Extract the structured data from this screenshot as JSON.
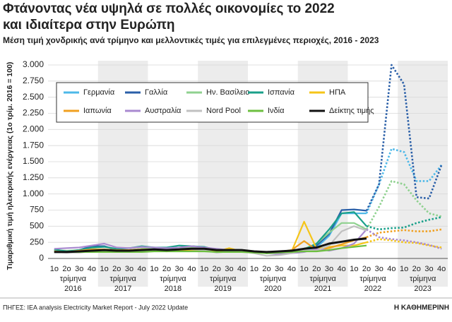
{
  "chart_data": {
    "type": "line",
    "title": [
      "Φτάνοντας νέα υψηλά σε πολλές οικονομίες το 2022",
      "και ιδιαίτερα στην Ευρώπη"
    ],
    "subtitle": "Μέση τιμή χονδρικής ανά τρίμηνο και μελλοντικές τιμές για επιλεγμένες περιοχές, 2016 - 2023",
    "y_label": "Τιμαριθμική τιμή ηλεκτρικής ενέργειας (1ο τρίμ. 2016 = 100)",
    "source": "ΠΗΓΕΣ: IEA analysis Electricity Market Report - July 2022 Update",
    "brand": "Η ΚΑΘΗΜΕΡΙΝΗ",
    "categories": [
      "1ο",
      "2ο",
      "3ο",
      "4ο",
      "1ο",
      "2ο",
      "3ο",
      "4ο",
      "1ο",
      "2ο",
      "3ο",
      "4ο",
      "1ο",
      "2ο",
      "3ο",
      "4ο",
      "1ο",
      "2ο",
      "3ο",
      "4ο",
      "1ο",
      "2ο",
      "3ο",
      "4ο",
      "1ο",
      "2ο",
      "3ο",
      "4ο",
      "1ο",
      "2ο",
      "3ο",
      "4ο"
    ],
    "x_group_unit": "τρίμηνα",
    "years": [
      "2016",
      "2017",
      "2018",
      "2019",
      "2020",
      "2021",
      "2022",
      "2023"
    ],
    "shade_alternate_years": true,
    "forecast_from": 26,
    "ylim": [
      0,
      3000
    ],
    "yticks": [
      0,
      250,
      500,
      750,
      {
        "value": 1000,
        "label": "1.000"
      },
      {
        "value": 1250,
        "label": "1.250"
      },
      {
        "value": 1500,
        "label": "1.500"
      },
      {
        "value": 1750,
        "label": "1.750"
      },
      {
        "value": 2000,
        "label": "2.000"
      },
      {
        "value": 2250,
        "label": "2.250"
      },
      {
        "value": 2500,
        "label": "2.500"
      },
      {
        "value": 2750,
        "label": "2.750"
      },
      {
        "value": 3000,
        "label": "3.000"
      }
    ],
    "grid": true,
    "legend": "upper left",
    "series": [
      {
        "name": "Γερμανία",
        "color": "#4db8e8",
        "values": [
          115,
          110,
          120,
          130,
          140,
          120,
          125,
          135,
          130,
          130,
          140,
          150,
          150,
          140,
          130,
          125,
          110,
          90,
          95,
          110,
          130,
          170,
          350,
          700,
          700,
          700,
          1150,
          1700,
          1650,
          1200,
          1200,
          1450
        ]
      },
      {
        "name": "Γαλλία",
        "color": "#2a5fa8",
        "values": [
          120,
          110,
          130,
          190,
          190,
          130,
          130,
          150,
          150,
          150,
          160,
          190,
          170,
          130,
          120,
          130,
          110,
          80,
          80,
          130,
          140,
          200,
          380,
          750,
          760,
          740,
          1150,
          3000,
          2700,
          950,
          930,
          1450
        ]
      },
      {
        "name": "Ην. Βασίλειο",
        "color": "#8fd18f",
        "values": [
          130,
          120,
          130,
          150,
          140,
          130,
          130,
          150,
          170,
          160,
          170,
          170,
          150,
          130,
          130,
          130,
          100,
          80,
          80,
          110,
          150,
          230,
          400,
          550,
          550,
          450,
          800,
          1200,
          1150,
          900,
          700,
          650
        ]
      },
      {
        "name": "Ισπανία",
        "color": "#1aa08a",
        "values": [
          140,
          110,
          130,
          170,
          180,
          150,
          160,
          190,
          170,
          170,
          200,
          190,
          180,
          130,
          140,
          130,
          110,
          80,
          100,
          130,
          140,
          230,
          450,
          700,
          720,
          500,
          450,
          470,
          480,
          550,
          600,
          640
        ]
      },
      {
        "name": "ΗΠΑ",
        "color": "#f5c518",
        "values": [
          100,
          100,
          110,
          110,
          110,
          110,
          120,
          120,
          120,
          110,
          130,
          120,
          120,
          110,
          160,
          110,
          100,
          90,
          110,
          110,
          570,
          150,
          180,
          200,
          200,
          250,
          300,
          280,
          250,
          240,
          200,
          170
        ]
      },
      {
        "name": "Ιαπωνία",
        "color": "#f0a020",
        "values": [
          110,
          100,
          120,
          140,
          140,
          130,
          130,
          140,
          140,
          130,
          140,
          140,
          130,
          120,
          120,
          120,
          110,
          90,
          100,
          130,
          270,
          130,
          160,
          220,
          280,
          330,
          400,
          420,
          440,
          420,
          420,
          450
        ]
      },
      {
        "name": "Αυστραλία",
        "color": "#a98ad0",
        "values": [
          150,
          160,
          170,
          200,
          230,
          170,
          160,
          180,
          170,
          160,
          170,
          190,
          170,
          150,
          130,
          120,
          110,
          80,
          70,
          80,
          100,
          150,
          120,
          160,
          230,
          450,
          330,
          300,
          280,
          250,
          210,
          150
        ]
      },
      {
        "name": "Nord Pool",
        "color": "#c0c0c0",
        "values": [
          100,
          90,
          90,
          110,
          120,
          110,
          100,
          120,
          130,
          120,
          150,
          140,
          130,
          90,
          110,
          110,
          80,
          40,
          50,
          80,
          130,
          120,
          200,
          420,
          500,
          430,
          null,
          null,
          null,
          null,
          null,
          null
        ]
      },
      {
        "name": "Ινδία",
        "color": "#6dbf40",
        "values": [
          100,
          100,
          100,
          100,
          100,
          100,
          100,
          100,
          110,
          110,
          110,
          110,
          110,
          100,
          100,
          100,
          90,
          80,
          90,
          100,
          110,
          110,
          130,
          160,
          180,
          200,
          null,
          null,
          null,
          null,
          null,
          null
        ]
      },
      {
        "name": "Δείκτης τιμής",
        "color": "#111111",
        "values": [
          100,
          100,
          110,
          120,
          130,
          120,
          120,
          130,
          140,
          130,
          140,
          150,
          150,
          130,
          130,
          130,
          110,
          100,
          110,
          120,
          150,
          170,
          230,
          260,
          290,
          310,
          null,
          null,
          null,
          null,
          null,
          null
        ]
      }
    ]
  }
}
